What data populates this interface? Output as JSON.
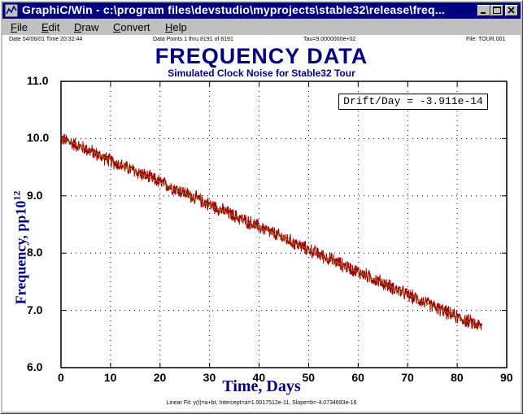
{
  "window": {
    "title": "GraphiC/Win - c:\\program files\\devstudio\\myprojects\\stable32\\release\\freq..."
  },
  "menu": {
    "items": [
      {
        "label": "File",
        "ul": "F"
      },
      {
        "label": "Edit",
        "ul": "E"
      },
      {
        "label": "Draw",
        "ul": "D"
      },
      {
        "label": "Convert",
        "ul": "C"
      },
      {
        "label": "Help",
        "ul": "H"
      }
    ]
  },
  "header": {
    "date": "Date  04/06/01  Time  20:32:44",
    "points": "Data Points 1 thru 8191 of 8191",
    "tau": "Tau=9.0000000e+02",
    "file": "File: TOUR.001"
  },
  "chart_data": {
    "type": "line",
    "title": "FREQUENCY DATA",
    "subtitle": "Simulated Clock Noise for Stable32 Tour",
    "xlabel": "Time, Days",
    "ylabel_main": "Frequency, pp10",
    "ylabel_sup": "12",
    "xlim": [
      0,
      90
    ],
    "ylim": [
      6.0,
      11.0
    ],
    "xticks": [
      "0",
      "10",
      "20",
      "30",
      "40",
      "50",
      "60",
      "70",
      "80",
      "90"
    ],
    "yticks": [
      "11.0",
      "10.0",
      "9.0",
      "8.0",
      "7.0",
      "6.0"
    ],
    "grid": true,
    "series": [
      {
        "color": "#a00000",
        "x": [
          0,
          5,
          10,
          15,
          20,
          25,
          30,
          35,
          40,
          45,
          50,
          55,
          60,
          65,
          70,
          75,
          80,
          85
        ],
        "y": [
          10.0,
          9.82,
          9.61,
          9.43,
          9.24,
          9.05,
          8.85,
          8.65,
          8.46,
          8.26,
          8.06,
          7.87,
          7.67,
          7.48,
          7.27,
          7.08,
          6.88,
          6.72
        ],
        "noise_band": 0.12
      },
      {
        "color": "#808000",
        "x": [
          0,
          85
        ],
        "y": [
          10.0177,
          6.69
        ]
      }
    ],
    "annotation": "Drift/Day = -3.911e-14",
    "fit_note": "Linear Fit: y(t)=a+bt, Intercept=a=1.0017512e-11, Slope=b=-4.0734693e-16"
  }
}
